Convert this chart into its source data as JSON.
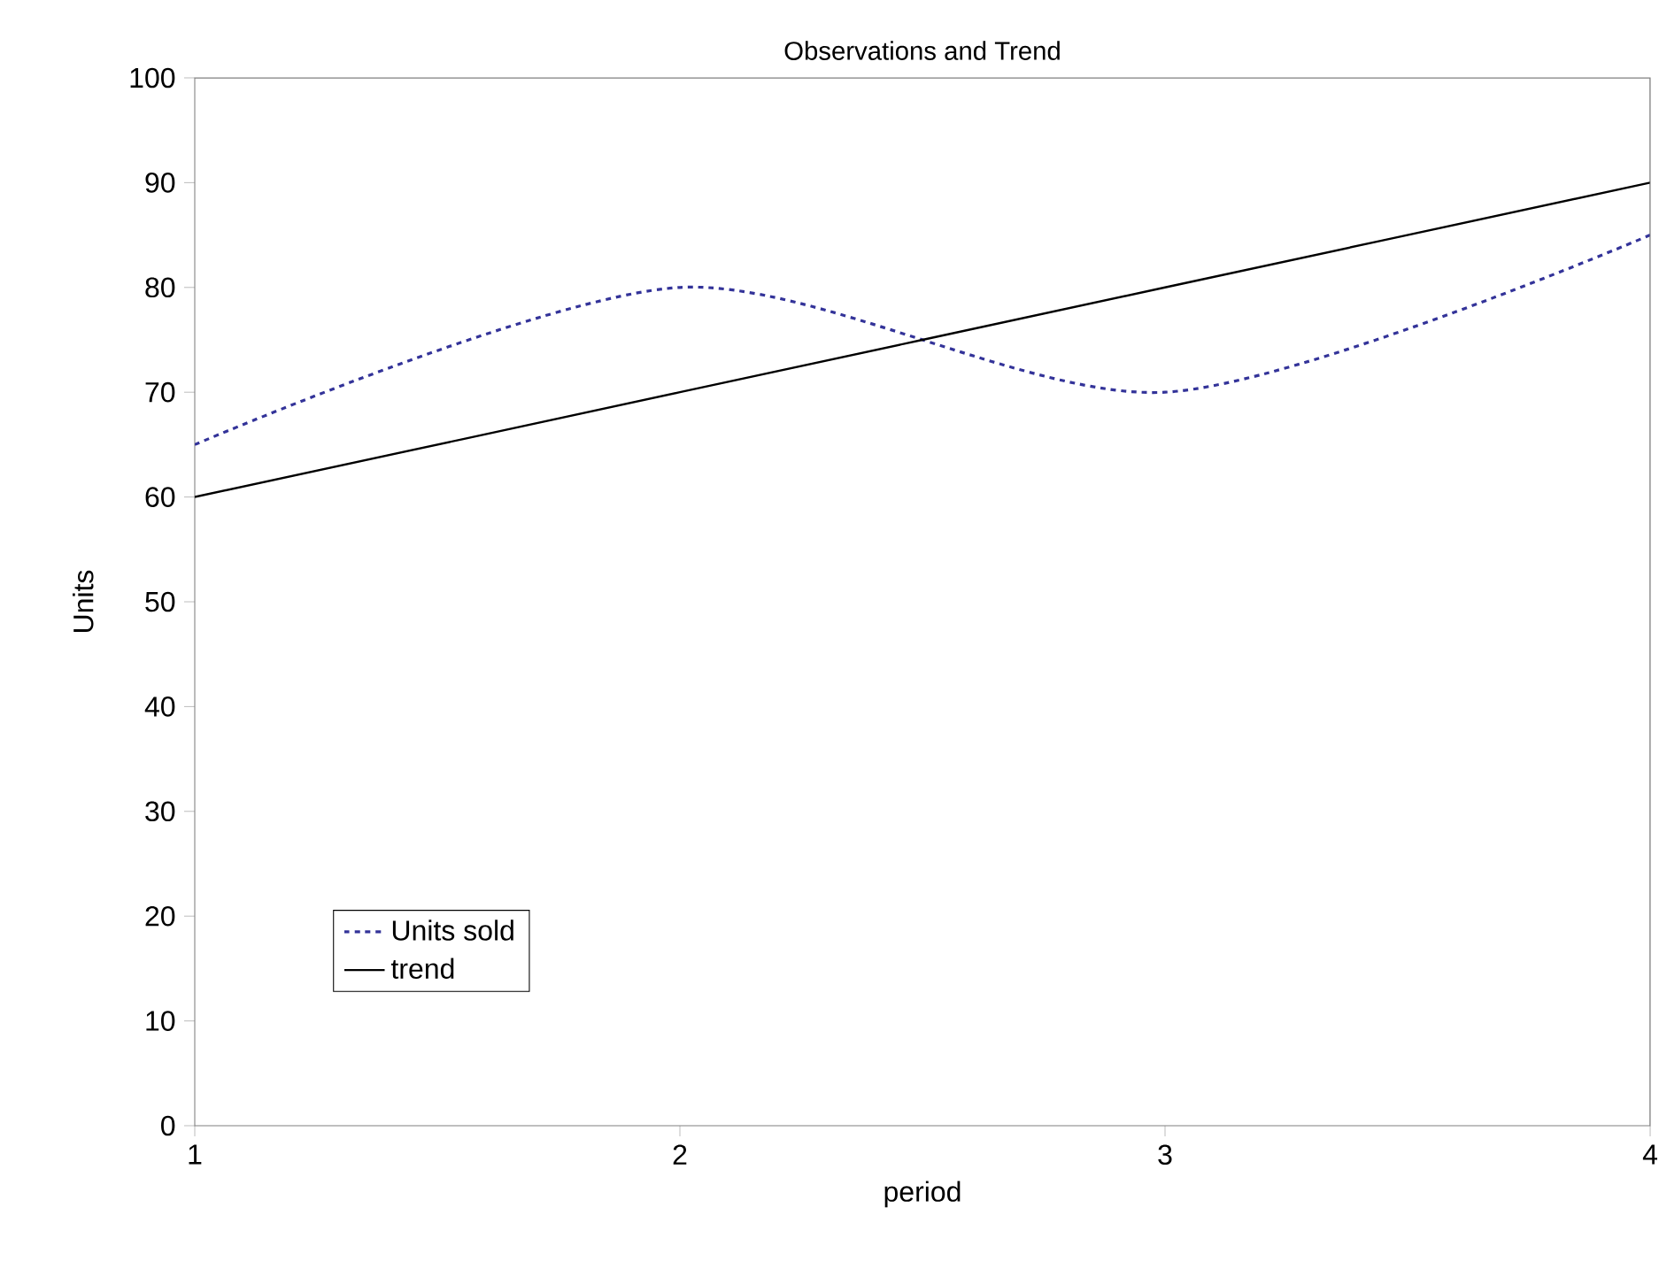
{
  "chart_data": {
    "type": "line",
    "title": "Observations and Trend",
    "xlabel": "period",
    "ylabel": "Units",
    "x": [
      1,
      2,
      3,
      4
    ],
    "series": [
      {
        "name": "Units sold",
        "color": "#333399",
        "values": [
          65,
          80,
          70,
          85
        ],
        "line_style": "dotted"
      },
      {
        "name": "trend",
        "color": "#000000",
        "values": [
          60,
          70,
          80,
          90
        ],
        "line_style": "solid"
      }
    ],
    "xlim": [
      1,
      4
    ],
    "ylim": [
      0,
      100
    ],
    "xticks": [
      1,
      2,
      3,
      4
    ],
    "yticks": [
      0,
      10,
      20,
      30,
      40,
      50,
      60,
      70,
      80,
      90,
      100
    ],
    "legend": "bottom left",
    "marker": "none",
    "grid": false
  }
}
